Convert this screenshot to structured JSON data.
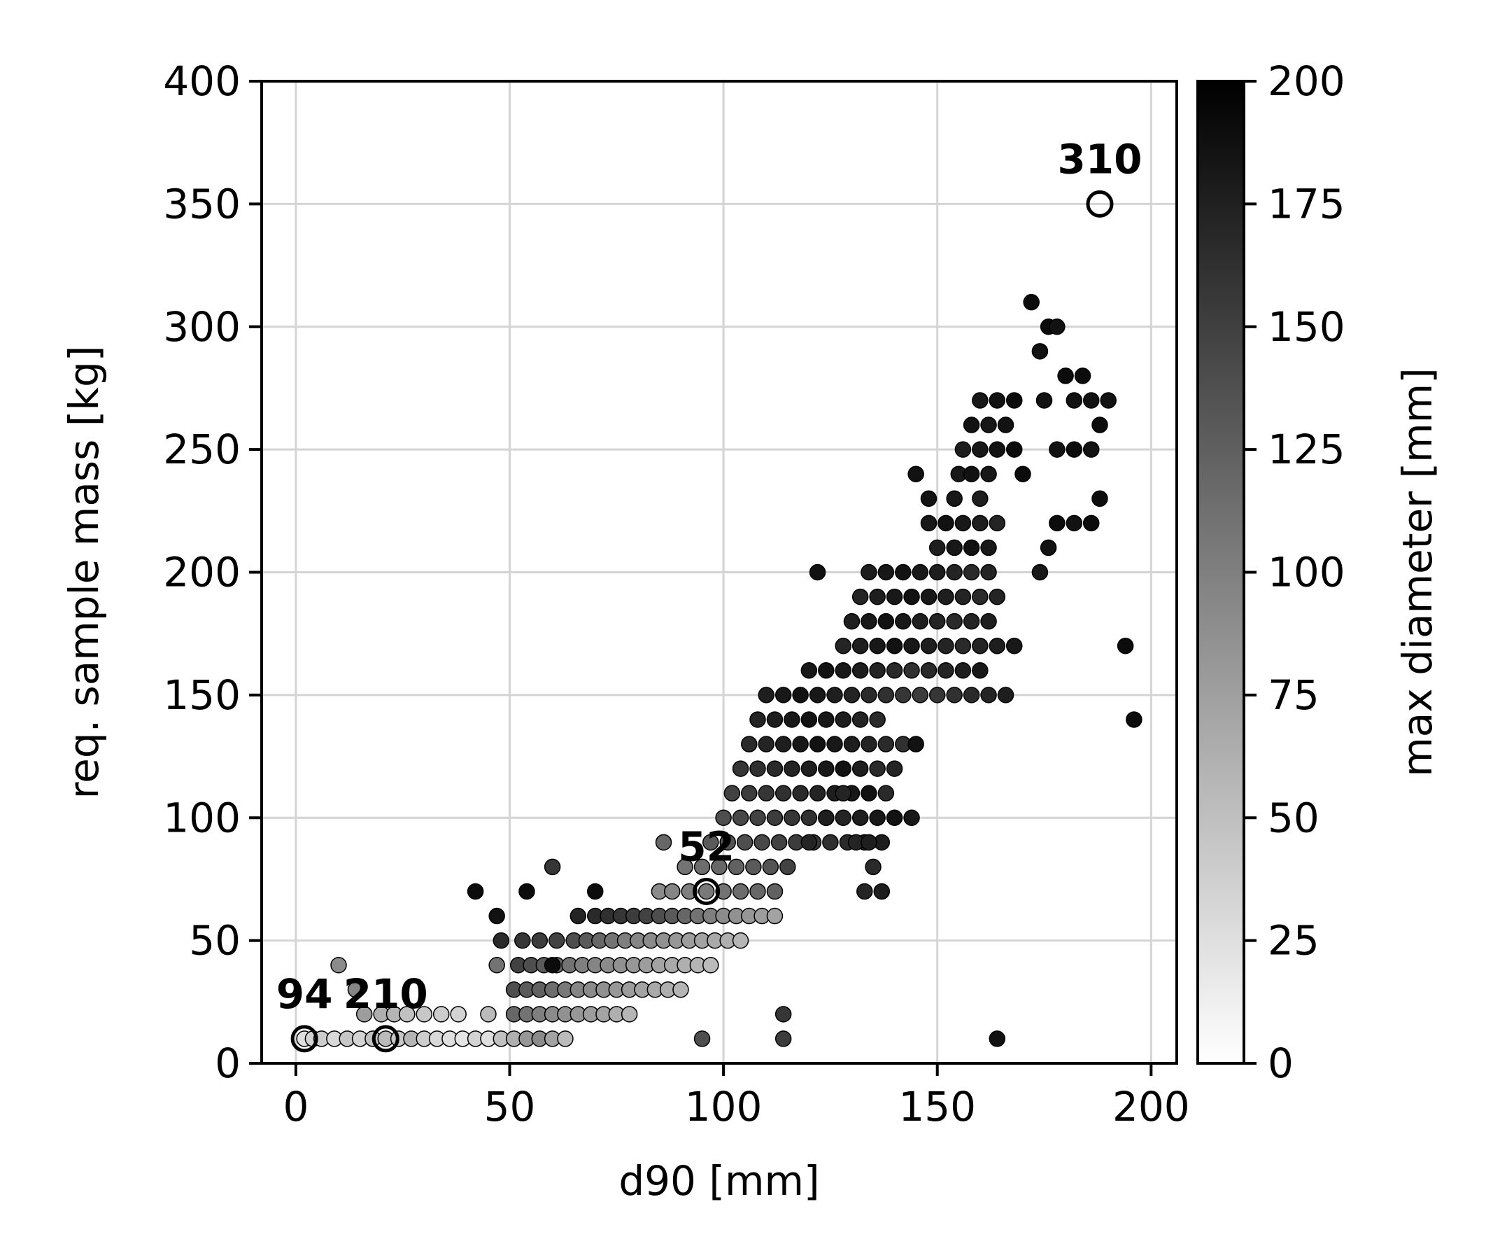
{
  "chart_data": {
    "type": "scatter",
    "title": "",
    "xlabel": "d90 [mm]",
    "ylabel": "req. sample mass [kg]",
    "xlim": [
      -8,
      206
    ],
    "ylim": [
      0,
      400
    ],
    "x_ticks": [
      "0",
      "50",
      "100",
      "150",
      "200"
    ],
    "y_ticks": [
      "0",
      "50",
      "100",
      "150",
      "200",
      "250",
      "300",
      "350",
      "400"
    ],
    "grid": true,
    "colorbar": {
      "label": "max diameter [mm]",
      "range": [
        0,
        200
      ],
      "colormap": "white-to-black",
      "ticks": [
        "0",
        "25",
        "50",
        "75",
        "100",
        "125",
        "150",
        "175",
        "200"
      ]
    },
    "highlight_color": "#000000",
    "annotations": [
      {
        "label": "94",
        "x": 2,
        "y": 10
      },
      {
        "label": "210",
        "x": 21,
        "y": 10
      },
      {
        "label": "52",
        "x": 96,
        "y": 70
      },
      {
        "label": "310",
        "x": 188,
        "y": 350
      }
    ],
    "points": [
      [
        2,
        10,
        20
      ],
      [
        4,
        10,
        30
      ],
      [
        6,
        10,
        35
      ],
      [
        9,
        10,
        25
      ],
      [
        12,
        10,
        40
      ],
      [
        15,
        10,
        30
      ],
      [
        18,
        10,
        45
      ],
      [
        21,
        10,
        50
      ],
      [
        24,
        10,
        40
      ],
      [
        27,
        10,
        55
      ],
      [
        30,
        10,
        35
      ],
      [
        33,
        10,
        25
      ],
      [
        36,
        10,
        20
      ],
      [
        39,
        10,
        15
      ],
      [
        42,
        10,
        30
      ],
      [
        45,
        10,
        20
      ],
      [
        48,
        10,
        45
      ],
      [
        51,
        10,
        60
      ],
      [
        54,
        10,
        80
      ],
      [
        57,
        10,
        90
      ],
      [
        60,
        10,
        70
      ],
      [
        63,
        10,
        50
      ],
      [
        10,
        40,
        90
      ],
      [
        14,
        30,
        95
      ],
      [
        16,
        20,
        75
      ],
      [
        20,
        20,
        60
      ],
      [
        23,
        20,
        55
      ],
      [
        26,
        20,
        45
      ],
      [
        30,
        20,
        40
      ],
      [
        34,
        20,
        35
      ],
      [
        38,
        20,
        30
      ],
      [
        45,
        20,
        50
      ],
      [
        51,
        20,
        120
      ],
      [
        54,
        20,
        110
      ],
      [
        57,
        20,
        100
      ],
      [
        60,
        20,
        90
      ],
      [
        63,
        20,
        85
      ],
      [
        66,
        20,
        80
      ],
      [
        69,
        20,
        75
      ],
      [
        72,
        20,
        70
      ],
      [
        75,
        20,
        60
      ],
      [
        78,
        20,
        55
      ],
      [
        51,
        30,
        140
      ],
      [
        54,
        30,
        130
      ],
      [
        57,
        30,
        125
      ],
      [
        60,
        30,
        115
      ],
      [
        63,
        30,
        105
      ],
      [
        66,
        30,
        95
      ],
      [
        69,
        30,
        90
      ],
      [
        72,
        30,
        85
      ],
      [
        75,
        30,
        80
      ],
      [
        78,
        30,
        75
      ],
      [
        81,
        30,
        70
      ],
      [
        84,
        30,
        65
      ],
      [
        87,
        30,
        60
      ],
      [
        90,
        30,
        55
      ],
      [
        52,
        40,
        150
      ],
      [
        55,
        40,
        140
      ],
      [
        58,
        40,
        130
      ],
      [
        61,
        40,
        120
      ],
      [
        64,
        40,
        110
      ],
      [
        67,
        40,
        100
      ],
      [
        70,
        40,
        95
      ],
      [
        73,
        40,
        90
      ],
      [
        76,
        40,
        85
      ],
      [
        79,
        40,
        80
      ],
      [
        82,
        40,
        75
      ],
      [
        85,
        40,
        70
      ],
      [
        88,
        40,
        65
      ],
      [
        91,
        40,
        60
      ],
      [
        94,
        40,
        55
      ],
      [
        97,
        40,
        50
      ],
      [
        47,
        40,
        110
      ],
      [
        48,
        50,
        170
      ],
      [
        53,
        50,
        160
      ],
      [
        57,
        50,
        155
      ],
      [
        61,
        50,
        150
      ],
      [
        65,
        50,
        140
      ],
      [
        68,
        50,
        130
      ],
      [
        71,
        50,
        120
      ],
      [
        74,
        50,
        110
      ],
      [
        77,
        50,
        100
      ],
      [
        80,
        50,
        95
      ],
      [
        83,
        50,
        90
      ],
      [
        86,
        50,
        85
      ],
      [
        89,
        50,
        80
      ],
      [
        92,
        50,
        75
      ],
      [
        95,
        50,
        70
      ],
      [
        98,
        50,
        65
      ],
      [
        101,
        50,
        60
      ],
      [
        104,
        50,
        55
      ],
      [
        47,
        60,
        190
      ],
      [
        60,
        40,
        195
      ],
      [
        54,
        70,
        195
      ],
      [
        70,
        70,
        195
      ],
      [
        42,
        70,
        195
      ],
      [
        60,
        80,
        160
      ],
      [
        66,
        60,
        175
      ],
      [
        70,
        60,
        170
      ],
      [
        73,
        60,
        165
      ],
      [
        76,
        60,
        160
      ],
      [
        79,
        60,
        155
      ],
      [
        82,
        60,
        150
      ],
      [
        85,
        60,
        140
      ],
      [
        88,
        60,
        130
      ],
      [
        91,
        60,
        120
      ],
      [
        94,
        60,
        110
      ],
      [
        97,
        60,
        100
      ],
      [
        100,
        60,
        90
      ],
      [
        103,
        60,
        85
      ],
      [
        106,
        60,
        80
      ],
      [
        109,
        60,
        75
      ],
      [
        112,
        60,
        70
      ],
      [
        85,
        70,
        90
      ],
      [
        88,
        70,
        95
      ],
      [
        92,
        70,
        100
      ],
      [
        96,
        70,
        105
      ],
      [
        100,
        70,
        110
      ],
      [
        104,
        70,
        115
      ],
      [
        108,
        70,
        120
      ],
      [
        112,
        70,
        125
      ],
      [
        86,
        90,
        120
      ],
      [
        91,
        80,
        110
      ],
      [
        95,
        80,
        115
      ],
      [
        99,
        80,
        120
      ],
      [
        103,
        80,
        125
      ],
      [
        107,
        80,
        130
      ],
      [
        111,
        80,
        135
      ],
      [
        115,
        80,
        150
      ],
      [
        97,
        90,
        130
      ],
      [
        101,
        90,
        135
      ],
      [
        105,
        90,
        140
      ],
      [
        109,
        90,
        145
      ],
      [
        113,
        90,
        150
      ],
      [
        117,
        90,
        155
      ],
      [
        121,
        90,
        160
      ],
      [
        125,
        90,
        165
      ],
      [
        129,
        90,
        170
      ],
      [
        133,
        90,
        175
      ],
      [
        137,
        90,
        180
      ],
      [
        100,
        100,
        140
      ],
      [
        104,
        100,
        145
      ],
      [
        108,
        100,
        150
      ],
      [
        112,
        100,
        155
      ],
      [
        116,
        100,
        160
      ],
      [
        120,
        100,
        165
      ],
      [
        124,
        100,
        170
      ],
      [
        128,
        100,
        175
      ],
      [
        132,
        100,
        180
      ],
      [
        136,
        100,
        185
      ],
      [
        140,
        100,
        190
      ],
      [
        144,
        100,
        185
      ],
      [
        102,
        110,
        150
      ],
      [
        106,
        110,
        155
      ],
      [
        110,
        110,
        160
      ],
      [
        114,
        110,
        165
      ],
      [
        118,
        110,
        170
      ],
      [
        122,
        110,
        175
      ],
      [
        126,
        110,
        180
      ],
      [
        130,
        110,
        185
      ],
      [
        134,
        110,
        190
      ],
      [
        138,
        110,
        170
      ],
      [
        104,
        120,
        160
      ],
      [
        108,
        120,
        165
      ],
      [
        112,
        120,
        170
      ],
      [
        116,
        120,
        175
      ],
      [
        120,
        120,
        180
      ],
      [
        124,
        120,
        185
      ],
      [
        128,
        120,
        190
      ],
      [
        132,
        120,
        180
      ],
      [
        136,
        120,
        170
      ],
      [
        140,
        120,
        175
      ],
      [
        106,
        130,
        170
      ],
      [
        110,
        130,
        175
      ],
      [
        114,
        130,
        180
      ],
      [
        118,
        130,
        185
      ],
      [
        122,
        130,
        190
      ],
      [
        126,
        130,
        185
      ],
      [
        130,
        130,
        180
      ],
      [
        134,
        130,
        175
      ],
      [
        138,
        130,
        170
      ],
      [
        142,
        130,
        165
      ],
      [
        108,
        140,
        175
      ],
      [
        112,
        140,
        180
      ],
      [
        116,
        140,
        185
      ],
      [
        120,
        140,
        190
      ],
      [
        124,
        140,
        185
      ],
      [
        128,
        140,
        180
      ],
      [
        132,
        140,
        175
      ],
      [
        136,
        140,
        170
      ],
      [
        110,
        150,
        180
      ],
      [
        114,
        150,
        185
      ],
      [
        118,
        150,
        190
      ],
      [
        122,
        150,
        185
      ],
      [
        126,
        150,
        180
      ],
      [
        130,
        150,
        175
      ],
      [
        134,
        150,
        170
      ],
      [
        138,
        150,
        165
      ],
      [
        142,
        150,
        160
      ],
      [
        146,
        150,
        155
      ],
      [
        150,
        150,
        160
      ],
      [
        154,
        150,
        165
      ],
      [
        158,
        150,
        170
      ],
      [
        162,
        150,
        175
      ],
      [
        166,
        150,
        180
      ],
      [
        120,
        160,
        185
      ],
      [
        124,
        160,
        190
      ],
      [
        128,
        160,
        185
      ],
      [
        132,
        160,
        180
      ],
      [
        136,
        160,
        175
      ],
      [
        140,
        160,
        170
      ],
      [
        144,
        160,
        165
      ],
      [
        148,
        160,
        170
      ],
      [
        152,
        160,
        175
      ],
      [
        156,
        160,
        180
      ],
      [
        160,
        160,
        185
      ],
      [
        122,
        200,
        190
      ],
      [
        128,
        170,
        175
      ],
      [
        132,
        170,
        180
      ],
      [
        136,
        170,
        185
      ],
      [
        140,
        170,
        190
      ],
      [
        144,
        170,
        185
      ],
      [
        148,
        170,
        180
      ],
      [
        152,
        170,
        175
      ],
      [
        156,
        170,
        170
      ],
      [
        160,
        170,
        175
      ],
      [
        164,
        170,
        180
      ],
      [
        168,
        170,
        185
      ],
      [
        130,
        180,
        180
      ],
      [
        134,
        180,
        185
      ],
      [
        138,
        180,
        190
      ],
      [
        142,
        180,
        185
      ],
      [
        146,
        180,
        180
      ],
      [
        150,
        180,
        175
      ],
      [
        154,
        180,
        170
      ],
      [
        158,
        180,
        175
      ],
      [
        162,
        180,
        180
      ],
      [
        132,
        190,
        175
      ],
      [
        136,
        190,
        180
      ],
      [
        140,
        190,
        185
      ],
      [
        144,
        190,
        190
      ],
      [
        148,
        190,
        185
      ],
      [
        152,
        190,
        180
      ],
      [
        156,
        190,
        175
      ],
      [
        160,
        190,
        170
      ],
      [
        164,
        190,
        175
      ],
      [
        134,
        200,
        180
      ],
      [
        138,
        200,
        185
      ],
      [
        142,
        200,
        190
      ],
      [
        146,
        200,
        185
      ],
      [
        150,
        200,
        180
      ],
      [
        154,
        200,
        175
      ],
      [
        158,
        200,
        170
      ],
      [
        162,
        200,
        175
      ],
      [
        150,
        210,
        180
      ],
      [
        154,
        210,
        185
      ],
      [
        158,
        210,
        190
      ],
      [
        162,
        210,
        185
      ],
      [
        148,
        220,
        185
      ],
      [
        152,
        220,
        190
      ],
      [
        156,
        220,
        185
      ],
      [
        160,
        220,
        180
      ],
      [
        164,
        220,
        175
      ],
      [
        148,
        230,
        190
      ],
      [
        154,
        230,
        185
      ],
      [
        160,
        230,
        180
      ],
      [
        145,
        240,
        190
      ],
      [
        155,
        240,
        185
      ],
      [
        158,
        240,
        190
      ],
      [
        162,
        240,
        185
      ],
      [
        156,
        250,
        180
      ],
      [
        160,
        250,
        185
      ],
      [
        164,
        250,
        190
      ],
      [
        168,
        250,
        195
      ],
      [
        158,
        260,
        190
      ],
      [
        162,
        260,
        185
      ],
      [
        166,
        260,
        190
      ],
      [
        160,
        270,
        185
      ],
      [
        164,
        270,
        190
      ],
      [
        168,
        270,
        195
      ],
      [
        170,
        240,
        195
      ],
      [
        172,
        310,
        195
      ],
      [
        174,
        290,
        190
      ],
      [
        176,
        300,
        195
      ],
      [
        178,
        300,
        190
      ],
      [
        175,
        270,
        190
      ],
      [
        180,
        280,
        195
      ],
      [
        182,
        270,
        190
      ],
      [
        184,
        280,
        195
      ],
      [
        186,
        270,
        190
      ],
      [
        188,
        260,
        195
      ],
      [
        190,
        270,
        190
      ],
      [
        188,
        230,
        195
      ],
      [
        186,
        220,
        195
      ],
      [
        182,
        220,
        190
      ],
      [
        178,
        220,
        195
      ],
      [
        176,
        210,
        190
      ],
      [
        174,
        200,
        185
      ],
      [
        178,
        250,
        190
      ],
      [
        182,
        250,
        195
      ],
      [
        186,
        250,
        190
      ],
      [
        133,
        70,
        175
      ],
      [
        135,
        80,
        170
      ],
      [
        137,
        70,
        180
      ],
      [
        131,
        90,
        175
      ],
      [
        134,
        90,
        180
      ],
      [
        114,
        20,
        160
      ],
      [
        114,
        10,
        155
      ],
      [
        95,
        10,
        140
      ],
      [
        164,
        10,
        190
      ],
      [
        145,
        130,
        190
      ],
      [
        194,
        170,
        195
      ],
      [
        196,
        140,
        195
      ],
      [
        128,
        110,
        175
      ],
      [
        124,
        100,
        180
      ],
      [
        120,
        90,
        175
      ]
    ]
  }
}
